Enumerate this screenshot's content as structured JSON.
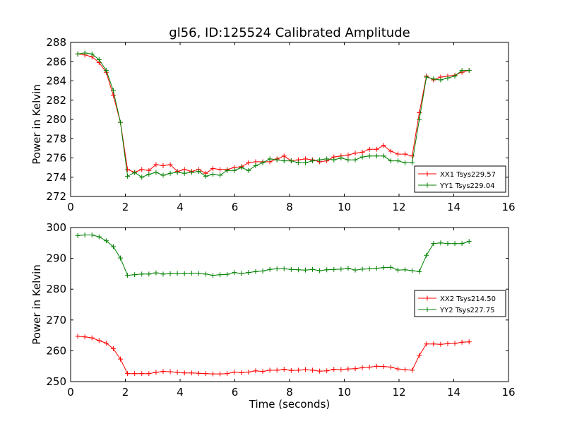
{
  "title": "gl56, ID:125524 Calibrated Amplitude",
  "colors": {
    "red": "#ff0000",
    "green": "#008000"
  },
  "chart_data": [
    {
      "type": "line",
      "title": "gl56, ID:125524 Calibrated Amplitude",
      "xlabel": "",
      "ylabel": "Power in Kelvin",
      "xlim": [
        0,
        16
      ],
      "ylim": [
        272,
        288
      ],
      "xticks": [
        0,
        2,
        4,
        6,
        8,
        10,
        12,
        14,
        16
      ],
      "yticks": [
        272,
        274,
        276,
        278,
        280,
        282,
        284,
        286,
        288
      ],
      "grid": false,
      "legend": "lower-right",
      "markers": "plus",
      "x": [
        0.26,
        0.52,
        0.78,
        1.04,
        1.3,
        1.56,
        1.82,
        2.08,
        2.34,
        2.6,
        2.86,
        3.12,
        3.38,
        3.64,
        3.9,
        4.16,
        4.42,
        4.68,
        4.94,
        5.2,
        5.46,
        5.72,
        5.98,
        6.24,
        6.5,
        6.76,
        7.02,
        7.28,
        7.54,
        7.8,
        8.06,
        8.32,
        8.58,
        8.84,
        9.1,
        9.36,
        9.62,
        9.88,
        10.14,
        10.4,
        10.66,
        10.92,
        11.18,
        11.44,
        11.7,
        11.96,
        12.22,
        12.48,
        12.74,
        13.0,
        13.26,
        13.52,
        13.78,
        14.04,
        14.3,
        14.56
      ],
      "series": [
        {
          "name": "XX1 Tsys229.57",
          "color": "#ff0000",
          "values": [
            286.8,
            286.7,
            286.5,
            285.9,
            284.9,
            282.5,
            279.7,
            274.8,
            274.5,
            274.8,
            274.7,
            275.3,
            275.2,
            275.3,
            274.6,
            274.8,
            274.6,
            274.8,
            274.4,
            274.9,
            274.8,
            274.8,
            275.0,
            275.1,
            275.5,
            275.6,
            275.6,
            275.6,
            275.9,
            276.2,
            275.7,
            275.8,
            275.9,
            275.8,
            275.6,
            275.7,
            276.1,
            276.2,
            276.3,
            276.5,
            276.6,
            276.9,
            276.9,
            277.3,
            276.7,
            276.4,
            276.4,
            276.2,
            280.7,
            284.5,
            284.1,
            284.4,
            284.5,
            284.6,
            284.9,
            285.1
          ]
        },
        {
          "name": "YY1 Tsys229.04",
          "color": "#008000",
          "values": [
            286.8,
            286.9,
            286.8,
            286.2,
            285.1,
            283.0,
            279.7,
            274.1,
            274.5,
            274.0,
            274.3,
            274.5,
            274.2,
            274.4,
            274.5,
            274.4,
            274.5,
            274.6,
            274.1,
            274.3,
            274.2,
            274.7,
            274.7,
            275.0,
            274.7,
            275.2,
            275.5,
            275.9,
            275.8,
            275.7,
            275.7,
            275.5,
            275.5,
            275.7,
            275.8,
            275.9,
            275.8,
            276.0,
            275.8,
            275.8,
            276.1,
            276.2,
            276.2,
            276.2,
            275.7,
            275.7,
            275.5,
            275.5,
            280.0,
            284.4,
            284.2,
            284.1,
            284.3,
            284.5,
            285.1,
            285.1
          ]
        }
      ]
    },
    {
      "type": "line",
      "title": "",
      "xlabel": "Time (seconds)",
      "ylabel": "Power in Kelvin",
      "xlim": [
        0,
        16
      ],
      "ylim": [
        250,
        300
      ],
      "xticks": [
        0,
        2,
        4,
        6,
        8,
        10,
        12,
        14,
        16
      ],
      "yticks": [
        250,
        260,
        270,
        280,
        290,
        300
      ],
      "grid": false,
      "legend": "right",
      "markers": "plus",
      "x": [
        0.26,
        0.52,
        0.78,
        1.04,
        1.3,
        1.56,
        1.82,
        2.08,
        2.34,
        2.6,
        2.86,
        3.12,
        3.38,
        3.64,
        3.9,
        4.16,
        4.42,
        4.68,
        4.94,
        5.2,
        5.46,
        5.72,
        5.98,
        6.24,
        6.5,
        6.76,
        7.02,
        7.28,
        7.54,
        7.8,
        8.06,
        8.32,
        8.58,
        8.84,
        9.1,
        9.36,
        9.62,
        9.88,
        10.14,
        10.4,
        10.66,
        10.92,
        11.18,
        11.44,
        11.7,
        11.96,
        12.22,
        12.48,
        12.74,
        13.0,
        13.26,
        13.52,
        13.78,
        14.04,
        14.3,
        14.56
      ],
      "series": [
        {
          "name": "XX2 Tsys214.50",
          "color": "#ff0000",
          "values": [
            264.7,
            264.5,
            264.2,
            263.3,
            262.5,
            260.7,
            257.3,
            252.6,
            252.6,
            252.6,
            252.6,
            253.0,
            253.3,
            253.2,
            253.0,
            252.8,
            252.8,
            252.7,
            252.6,
            252.5,
            252.5,
            252.6,
            253.1,
            252.9,
            253.1,
            253.5,
            253.3,
            253.7,
            253.7,
            254.0,
            253.6,
            253.7,
            253.9,
            253.7,
            253.4,
            253.5,
            254.0,
            253.9,
            254.1,
            254.2,
            254.5,
            254.7,
            255.0,
            254.9,
            254.7,
            254.1,
            253.9,
            253.7,
            258.5,
            262.2,
            262.2,
            262.1,
            262.3,
            262.4,
            262.8,
            262.9
          ]
        },
        {
          "name": "YY2 Tsys227.75",
          "color": "#008000",
          "values": [
            297.4,
            297.6,
            297.6,
            297.0,
            295.7,
            293.8,
            290.1,
            284.5,
            284.7,
            284.9,
            284.9,
            285.3,
            284.9,
            285.0,
            285.1,
            285.0,
            285.2,
            285.1,
            284.9,
            284.5,
            284.7,
            284.8,
            285.4,
            285.1,
            285.4,
            285.7,
            285.9,
            286.4,
            286.6,
            286.6,
            286.4,
            286.3,
            286.2,
            286.4,
            286.0,
            286.3,
            286.4,
            286.5,
            286.8,
            286.2,
            286.5,
            286.6,
            286.8,
            287.0,
            287.1,
            286.2,
            286.3,
            286.0,
            285.7,
            291.0,
            294.8,
            295.0,
            294.8,
            294.8,
            294.8,
            295.5
          ]
        }
      ]
    }
  ]
}
